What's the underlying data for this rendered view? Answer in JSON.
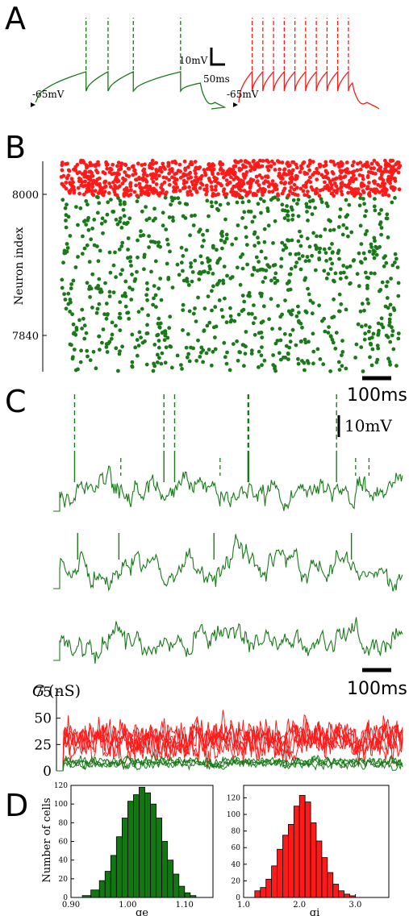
{
  "panels": {
    "a": "A",
    "b": "B",
    "c": "C",
    "d": "D"
  },
  "colors": {
    "excitatory": "#1a7a1a",
    "inhibitory": "#ff1a1a",
    "hist_edge": "#000000"
  },
  "chart_data": [
    {
      "panel": "A",
      "type": "line",
      "traces": [
        {
          "color": "#1a7a1a",
          "rest_label": "-65mV",
          "spike_times_ms": [
            46,
            66,
            89,
            132
          ],
          "description_units": "ms"
        },
        {
          "color": "#ff1a1a",
          "rest_label": "-65mV",
          "spike_times_ms": [
            20,
            36,
            52,
            68,
            84,
            100,
            116,
            132,
            148,
            164
          ],
          "description_units": "ms"
        }
      ],
      "scalebar": {
        "y_label": "10mV",
        "x_label": "50ms"
      }
    },
    {
      "panel": "B",
      "type": "scatter",
      "ylabel": "Neuron index",
      "yticks": [
        "8000",
        "7840"
      ],
      "ylim": [
        7800,
        8040
      ],
      "xlim": [
        0,
        900
      ],
      "series": [
        {
          "color": "#1a7a1a",
          "index_range": [
            7800,
            8000
          ]
        },
        {
          "color": "#ff1a1a",
          "index_range": [
            8000,
            8040
          ]
        }
      ],
      "scalebar": {
        "x_label": "100ms"
      }
    },
    {
      "panel": "C",
      "type": "line",
      "traces_spike_times_ms": [
        [
          39,
          273,
          301,
          493,
          495,
          725
        ],
        [
          47,
          155,
          404,
          764
        ],
        []
      ],
      "small_spike_marks_ms": [
        160,
        420,
        775,
        810
      ],
      "scalebar": {
        "y_label": "10mV",
        "x_label": "100ms"
      }
    },
    {
      "panel": "C-bottom",
      "type": "line",
      "ylabel_symbol": "G",
      "ylabel_unit": "(nS)",
      "yticks": [
        "75",
        "50",
        "25",
        "0"
      ],
      "ylim": [
        0,
        75
      ],
      "series": [
        {
          "color": "#ff1a1a",
          "mean": 30
        },
        {
          "color": "#1a7a1a",
          "mean": 8
        }
      ]
    },
    {
      "panel": "D",
      "type": "bar",
      "hist_left": {
        "xlabel": "ge",
        "ylabel": "Number of cells",
        "color": "#117711",
        "xticks": [
          "0.90",
          "1.00",
          "1.10"
        ],
        "yticks": [
          "0",
          "20",
          "40",
          "60",
          "80",
          "100",
          "120"
        ],
        "xlim": [
          0.9,
          1.15
        ],
        "ylim": [
          0,
          120
        ],
        "bin_edges": [
          0.92,
          0.935,
          0.95,
          0.96,
          0.97,
          0.98,
          0.99,
          1.0,
          1.01,
          1.02,
          1.03,
          1.04,
          1.05,
          1.06,
          1.07,
          1.08,
          1.09,
          1.1,
          1.11,
          1.12
        ],
        "values": [
          2,
          8,
          18,
          28,
          45,
          65,
          85,
          103,
          110,
          118,
          112,
          100,
          85,
          60,
          40,
          25,
          12,
          5,
          2
        ]
      },
      "hist_right": {
        "xlabel": "gi",
        "color": "#ff1a1a",
        "xticks": [
          "1.0",
          "2.0",
          "3.0"
        ],
        "yticks": [
          "0",
          "20",
          "40",
          "60",
          "80",
          "100",
          "120"
        ],
        "xlim": [
          1.0,
          3.6
        ],
        "ylim": [
          0,
          135
        ],
        "bin_edges": [
          1.2,
          1.3,
          1.4,
          1.5,
          1.6,
          1.7,
          1.8,
          1.9,
          2.0,
          2.1,
          2.2,
          2.3,
          2.4,
          2.5,
          2.6,
          2.7,
          2.8,
          2.9,
          3.0
        ],
        "values": [
          8,
          12,
          22,
          38,
          58,
          75,
          88,
          110,
          123,
          115,
          90,
          68,
          48,
          30,
          16,
          8,
          4,
          2
        ]
      }
    }
  ]
}
